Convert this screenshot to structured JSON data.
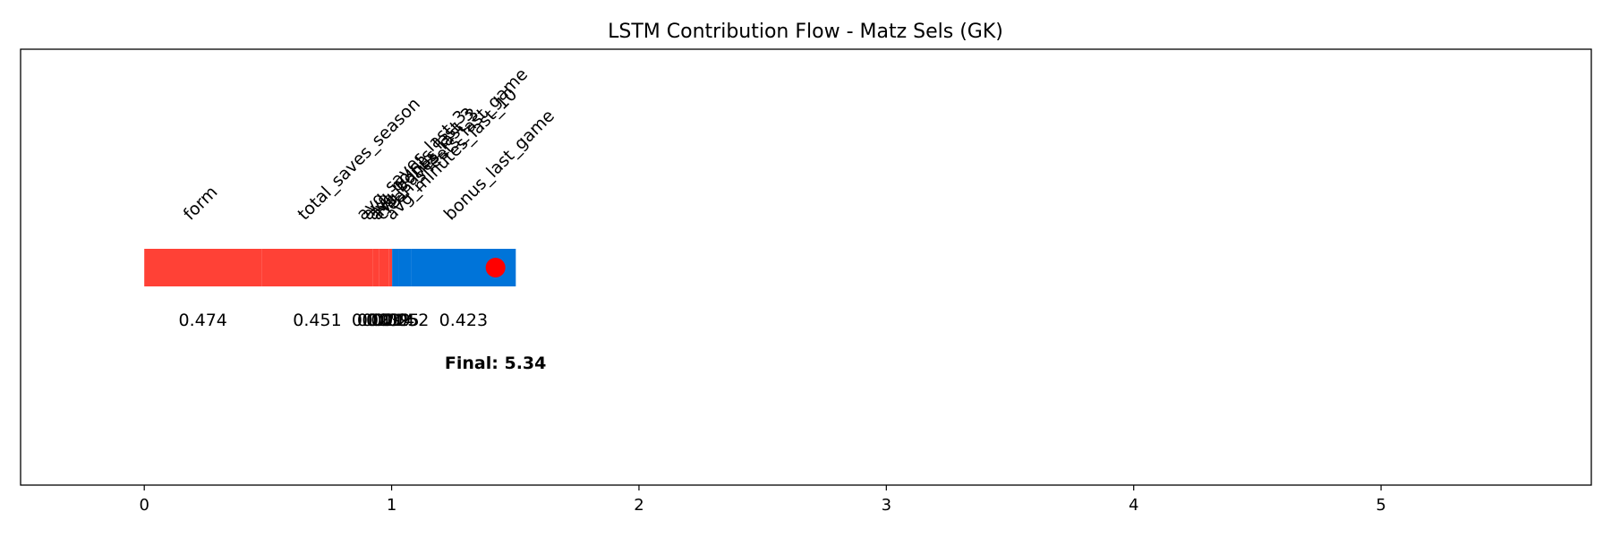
{
  "chart_data": {
    "type": "bar",
    "orientation": "horizontal-stacked",
    "title": "LSTM Contribution Flow - Matz Sels (GK)",
    "xlabel": "",
    "ylabel": "",
    "xlim": [
      -0.5,
      5.85
    ],
    "xticks": [
      0,
      1,
      2,
      3,
      4,
      5
    ],
    "grid": false,
    "segments": [
      {
        "feature": "form",
        "value": 0.474,
        "value_label": "0.474",
        "start": 0.0,
        "end": 0.474,
        "color": "#ff4136"
      },
      {
        "feature": "total_saves_season",
        "value": 0.451,
        "value_label": "0.451",
        "start": 0.474,
        "end": 0.925,
        "color": "#ff4136"
      },
      {
        "feature": "avg_saves_last_3",
        "value": 0.023,
        "value_label": "0.023",
        "start": 0.925,
        "end": 0.948,
        "color": "#ff4136"
      },
      {
        "feature": "avg_points_last_3",
        "value": 0.021,
        "value_label": "0.021",
        "start": 0.948,
        "end": 0.969,
        "color": "#ff4136"
      },
      {
        "feature": "avg_bonus_last_3",
        "value": 0.019,
        "value_label": "0.019",
        "start": 0.969,
        "end": 0.988,
        "color": "#ff4136"
      },
      {
        "feature": "avg_saves",
        "value": 0.014,
        "value_label": "0.014",
        "start": 0.988,
        "end": 1.002,
        "color": "#ff4136"
      },
      {
        "feature": "clean_sheets_last_game",
        "value": 0.025,
        "value_label": "0.025",
        "start": 1.002,
        "end": 1.027,
        "color": "#0074d9"
      },
      {
        "feature": "avg_minutes_last_10",
        "value": 0.052,
        "value_label": "0.052",
        "start": 1.027,
        "end": 1.079,
        "color": "#0074d9"
      },
      {
        "feature": "bonus_last_game",
        "value": 0.423,
        "value_label": "0.423",
        "start": 1.079,
        "end": 1.502,
        "color": "#0074d9"
      }
    ],
    "marker": {
      "x": 1.42,
      "color": "#ff0000"
    },
    "final": {
      "label": "Final: 5.34",
      "x": 1.42
    }
  }
}
